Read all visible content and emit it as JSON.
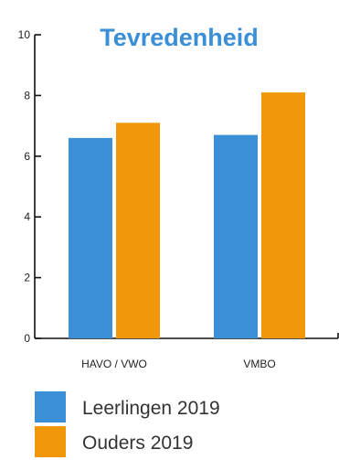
{
  "chart_data": {
    "type": "bar",
    "title": "Tevredenheid",
    "categories": [
      "HAVO / VWO",
      "VMBO"
    ],
    "series": [
      {
        "name": "Leerlingen 2019",
        "color": "#3a8fd6",
        "values": [
          6.6,
          6.7
        ]
      },
      {
        "name": "Ouders 2019",
        "color": "#f0980a",
        "values": [
          7.1,
          8.1
        ]
      }
    ],
    "ylim": [
      0,
      10
    ],
    "yticks": [
      0,
      2,
      4,
      6,
      8,
      10
    ],
    "grid": false,
    "legend": "bottom-left"
  }
}
